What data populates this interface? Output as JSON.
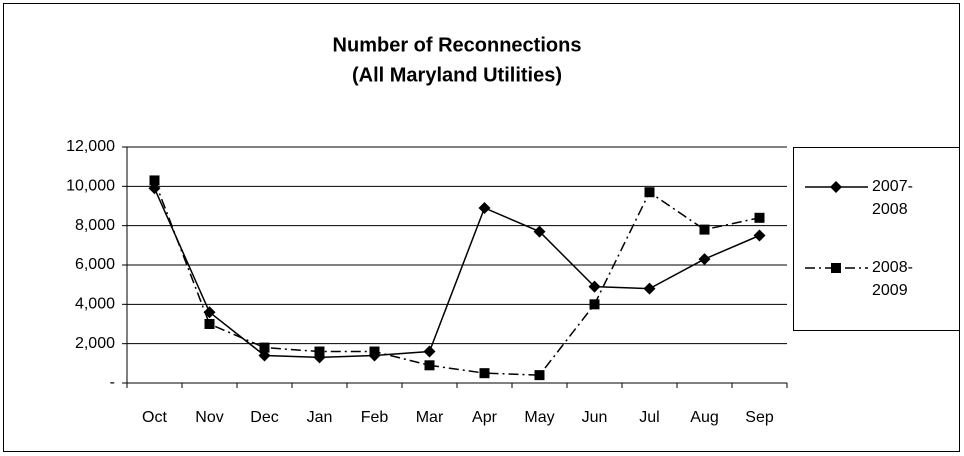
{
  "chart_data": {
    "type": "line",
    "title": "Number of Reconnections",
    "subtitle": "(All Maryland Utilities)",
    "categories": [
      "Oct",
      "Nov",
      "Dec",
      "Jan",
      "Feb",
      "Mar",
      "Apr",
      "May",
      "Jun",
      "Jul",
      "Aug",
      "Sep"
    ],
    "series": [
      {
        "name": "2007-2008",
        "color": "#000000",
        "line_style": "solid",
        "marker": "diamond",
        "values": [
          9900,
          3600,
          1400,
          1300,
          1400,
          1600,
          8900,
          7700,
          4900,
          4800,
          6300,
          7500
        ]
      },
      {
        "name": "2008-2009",
        "color": "#000000",
        "line_style": "dash-dot",
        "marker": "square",
        "values": [
          10300,
          3000,
          1800,
          1600,
          1600,
          900,
          500,
          400,
          4000,
          9700,
          7800,
          8400
        ]
      }
    ],
    "ylim": [
      0,
      12000
    ],
    "yticks": [
      {
        "value": 0,
        "label": "-"
      },
      {
        "value": 2000,
        "label": "2,000"
      },
      {
        "value": 4000,
        "label": "4,000"
      },
      {
        "value": 6000,
        "label": "6,000"
      },
      {
        "value": 8000,
        "label": "8,000"
      },
      {
        "value": 10000,
        "label": "10,000"
      },
      {
        "value": 12000,
        "label": "12,000"
      }
    ],
    "grid": true,
    "legend": "right"
  }
}
